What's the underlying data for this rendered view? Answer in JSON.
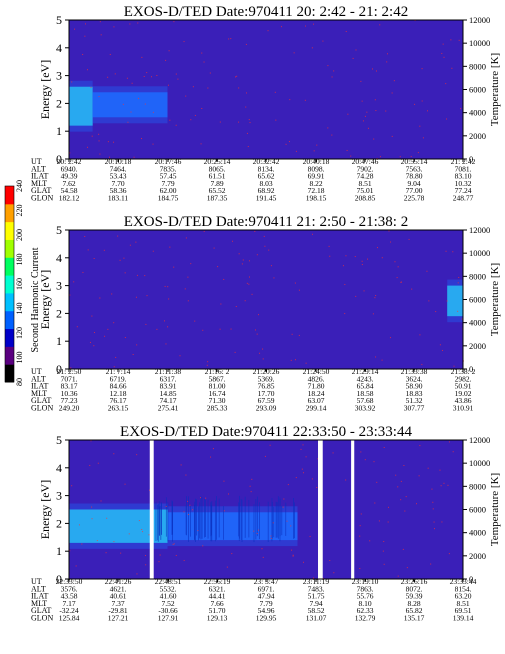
{
  "chart_data": [
    {
      "type": "heatmap",
      "title": "EXOS-D/TED   Date:970411  20: 2:42 - 21: 2:42",
      "ylabel": "Energy [eV]",
      "ylim": [
        0,
        5
      ],
      "yticks": [
        "0",
        "1",
        "2",
        "3",
        "4",
        "5"
      ],
      "y2label": "Temperature [K]",
      "y2lim": [
        0,
        12000
      ],
      "y2ticks": [
        "0",
        "2000",
        "4000",
        "6000",
        "8000",
        "10000",
        "12000"
      ],
      "row_labels": [
        "UT",
        "ALT",
        "ILAT",
        "MLT",
        "GLAT",
        "GLON"
      ],
      "columns": [
        [
          "20: 2:42",
          "6940.",
          "49.39",
          "7.62",
          "54.58",
          "182.12"
        ],
        [
          "20:10:18",
          "7464.",
          "53.43",
          "7.70",
          "58.36",
          "183.11"
        ],
        [
          "20:17:46",
          "7835.",
          "57.45",
          "7.79",
          "62.00",
          "184.75"
        ],
        [
          "20:25:14",
          "8065.",
          "61.51",
          "7.89",
          "65.52",
          "187.35"
        ],
        [
          "20:32:42",
          "8134.",
          "65.62",
          "8.03",
          "68.92",
          "191.45"
        ],
        [
          "20:40:18",
          "8098.",
          "69.91",
          "8.22",
          "72.18",
          "198.15"
        ],
        [
          "20:47:46",
          "7902.",
          "74.28",
          "8.51",
          "75.01",
          "208.85"
        ],
        [
          "20:55:14",
          "7563.",
          "78.80",
          "9.04",
          "77.00",
          "225.78"
        ],
        [
          "21: 2:42",
          "7081.",
          "83.10",
          "10.32",
          "77.24",
          "248.77"
        ]
      ],
      "bands": [
        {
          "x0": 0.0,
          "x1": 0.06,
          "e0": 1.2,
          "e1": 2.6,
          "level": "cyan"
        },
        {
          "x0": 0.06,
          "x1": 0.25,
          "e0": 1.5,
          "e1": 2.4,
          "level": "blue"
        }
      ],
      "gaps": []
    },
    {
      "type": "heatmap",
      "title": "EXOS-D/TED   Date:970411  21: 2:50 - 21:38: 2",
      "ylabel": "Energy [eV]",
      "ylim": [
        0,
        5
      ],
      "yticks": [
        "0",
        "1",
        "2",
        "3",
        "4",
        "5"
      ],
      "y2label": "Temperature [K]",
      "y2lim": [
        0,
        12000
      ],
      "y2ticks": [
        "0",
        "2000",
        "4000",
        "6000",
        "8000",
        "10000",
        "12000"
      ],
      "row_labels": [
        "UT",
        "ALT",
        "ILAT",
        "MLT",
        "GLAT",
        "GLON"
      ],
      "columns": [
        [
          "21: 2:50",
          "7071.",
          "83.17",
          "10.36",
          "77.23",
          "249.20"
        ],
        [
          "21: 7:14",
          "6719.",
          "84.66",
          "12.18",
          "76.17",
          "263.15"
        ],
        [
          "21:11:38",
          "6317.",
          "83.91",
          "14.85",
          "74.17",
          "275.41"
        ],
        [
          "21:16: 2",
          "5867.",
          "81.00",
          "16.74",
          "71.30",
          "285.33"
        ],
        [
          "21:20:26",
          "5369.",
          "76.85",
          "17.70",
          "67.59",
          "293.09"
        ],
        [
          "21:24:50",
          "4826.",
          "71.80",
          "18.24",
          "63.07",
          "299.14"
        ],
        [
          "21:29:14",
          "4243.",
          "65.84",
          "18.58",
          "57.68",
          "303.92"
        ],
        [
          "21:33:38",
          "3624.",
          "58.90",
          "18.83",
          "51.32",
          "307.77"
        ],
        [
          "21:38: 2",
          "2982.",
          "50.91",
          "19.02",
          "43.86",
          "310.91"
        ]
      ],
      "bands": [
        {
          "x0": 0.96,
          "x1": 1.0,
          "e0": 1.9,
          "e1": 3.0,
          "level": "cyan"
        }
      ],
      "gaps": []
    },
    {
      "type": "heatmap",
      "title": "EXOS-D/TED   Date:970411  22:33:50 - 23:33:44",
      "ylabel": "Energy [eV]",
      "ylim": [
        0,
        5
      ],
      "yticks": [
        "0",
        "1",
        "2",
        "3",
        "4",
        "5"
      ],
      "y2label": "Temperature [K]",
      "y2lim": [
        0,
        12000
      ],
      "y2ticks": [
        "0",
        "2000",
        "4000",
        "6000",
        "8000",
        "10000",
        "12000"
      ],
      "row_labels": [
        "UT",
        "ALT",
        "ILAT",
        "MLT",
        "GLAT",
        "GLON"
      ],
      "columns": [
        [
          "22:33:50",
          "3576.",
          "43.58",
          "7.17",
          "-32.24",
          "125.84"
        ],
        [
          "22:41:26",
          "4621.",
          "40.61",
          "7.37",
          "-29.81",
          "127.21"
        ],
        [
          "22:48:51",
          "5532.",
          "41.60",
          "7.52",
          "-30.66",
          "127.91"
        ],
        [
          "22:56:19",
          "6321.",
          "44.41",
          "7.66",
          "51.70",
          "129.13"
        ],
        [
          "23: 3:47",
          "6971.",
          "47.94",
          "7.79",
          "54.96",
          "129.95"
        ],
        [
          "23:11:19",
          "7483.",
          "51.75",
          "7.94",
          "58.52",
          "131.07"
        ],
        [
          "23:19:10",
          "7863.",
          "55.76",
          "8.10",
          "62.33",
          "132.79"
        ],
        [
          "23:26:16",
          "8072.",
          "59.39",
          "8.28",
          "65.82",
          "135.17"
        ],
        [
          "23:33:44",
          "8154.",
          "63.20",
          "8.51",
          "69.51",
          "139.14"
        ]
      ],
      "bands": [
        {
          "x0": 0.0,
          "x1": 0.25,
          "e0": 1.3,
          "e1": 2.5,
          "level": "cyan"
        },
        {
          "x0": 0.25,
          "x1": 0.58,
          "e0": 1.4,
          "e1": 2.4,
          "level": "blue"
        }
      ],
      "gaps": [
        {
          "x0": 0.205,
          "x1": 0.215
        },
        {
          "x0": 0.632,
          "x1": 0.644
        },
        {
          "x0": 0.716,
          "x1": 0.724
        }
      ]
    }
  ],
  "colorbar": {
    "label": "Second Harmonic Current",
    "ticks": [
      "80",
      "100",
      "120",
      "140",
      "160",
      "180",
      "200",
      "220",
      "240"
    ],
    "colors": [
      "#000000",
      "#5a0080",
      "#0000c8",
      "#0060ff",
      "#00c0ff",
      "#00ffd0",
      "#00ff60",
      "#a0ff00",
      "#ffff00",
      "#ffa000",
      "#ff0000"
    ]
  },
  "palette": {
    "background": "#3a1fb8",
    "blue": "#1e6cff",
    "cyan": "#2ee8f0",
    "speckle": "#ff3030"
  }
}
